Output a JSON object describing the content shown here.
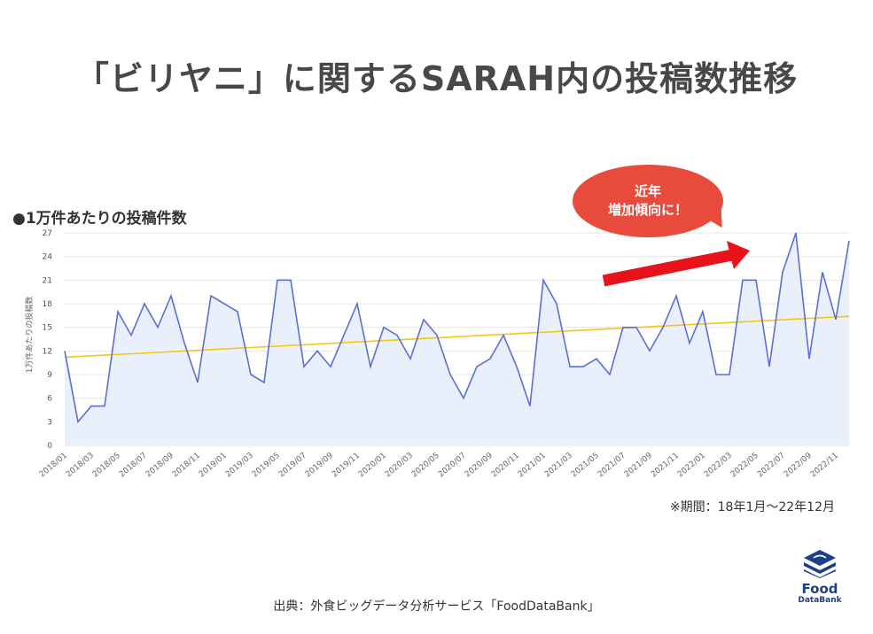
{
  "title": "「ビリヤニ」に関するSARAH内の投稿数推移",
  "subtitle": "●1万件あたりの投稿件数",
  "callout": {
    "line1": "近年",
    "line2": "増加傾向に！"
  },
  "period_note": "※期間：18年1月～22年12月",
  "source_note": "出典：外食ビッグデータ分析サービス「FoodDataBank」",
  "logo": {
    "name": "Food",
    "sub": "DataBank"
  },
  "colors": {
    "line": "#5b6fd6",
    "area": "#e9f0fb",
    "trend": "#f5c518",
    "arrow": "#e8131a",
    "grid": "#e6e6e6",
    "bubble": "#e84a3c",
    "logo": "#1b3f8c"
  },
  "chart_data": {
    "type": "area",
    "title": "",
    "ylabel": "1万件あたりの投稿数",
    "ylim": [
      0,
      27
    ],
    "yticks": [
      0,
      3,
      6,
      9,
      12,
      15,
      18,
      21,
      24,
      27
    ],
    "x": [
      "2018/01",
      "2018/02",
      "2018/03",
      "2018/04",
      "2018/05",
      "2018/06",
      "2018/07",
      "2018/08",
      "2018/09",
      "2018/10",
      "2018/11",
      "2018/12",
      "2019/01",
      "2019/02",
      "2019/03",
      "2019/04",
      "2019/05",
      "2019/06",
      "2019/07",
      "2019/08",
      "2019/09",
      "2019/10",
      "2019/11",
      "2019/12",
      "2020/01",
      "2020/02",
      "2020/03",
      "2020/04",
      "2020/05",
      "2020/06",
      "2020/07",
      "2020/08",
      "2020/09",
      "2020/10",
      "2020/11",
      "2020/12",
      "2021/01",
      "2021/02",
      "2021/03",
      "2021/04",
      "2021/05",
      "2021/06",
      "2021/07",
      "2021/08",
      "2021/09",
      "2021/10",
      "2021/11",
      "2021/12",
      "2022/01",
      "2022/02",
      "2022/03",
      "2022/04",
      "2022/05",
      "2022/06",
      "2022/07",
      "2022/08",
      "2022/09",
      "2022/10",
      "2022/11",
      "2022/12"
    ],
    "xtick_labels": [
      "2018/01",
      "2018/03",
      "2018/05",
      "2018/07",
      "2018/09",
      "2018/11",
      "2019/01",
      "2019/03",
      "2019/05",
      "2019/07",
      "2019/09",
      "2019/11",
      "2020/01",
      "2020/03",
      "2020/05",
      "2020/07",
      "2020/09",
      "2020/11",
      "2021/01",
      "2021/03",
      "2021/05",
      "2021/07",
      "2021/09",
      "2021/11",
      "2022/01",
      "2022/03",
      "2022/05",
      "2022/07",
      "2022/09",
      "2022/11"
    ],
    "values": [
      12,
      3,
      5,
      5,
      17,
      14,
      18,
      15,
      19,
      13,
      8,
      19,
      18,
      17,
      9,
      8,
      21,
      21,
      10,
      12,
      10,
      14,
      18,
      10,
      15,
      14,
      11,
      16,
      14,
      9,
      6,
      10,
      11,
      14,
      10,
      5,
      21,
      18,
      10,
      10,
      11,
      9,
      15,
      15,
      12,
      15,
      19,
      13,
      17,
      9,
      9,
      21,
      21,
      10,
      22,
      27,
      11,
      22,
      16,
      26
    ],
    "trend": [
      11.2,
      16.4
    ],
    "grid": true
  }
}
